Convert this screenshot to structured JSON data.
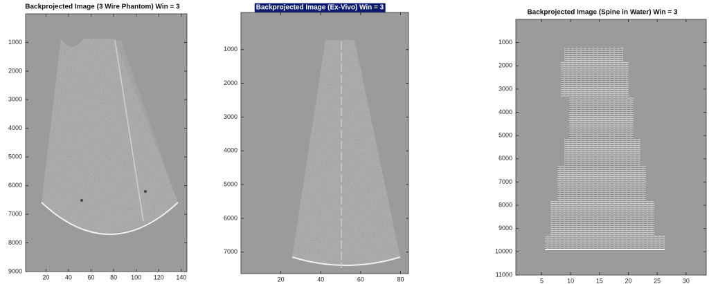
{
  "chart_data": [
    {
      "type": "image",
      "title": "Backprojected Image (3 Wire Phantom) Win = 3",
      "xlim": [
        2,
        145
      ],
      "xticks": [
        20,
        40,
        60,
        80,
        100,
        120,
        140
      ],
      "ylim": [
        0,
        9000
      ],
      "yticks": [
        1000,
        2000,
        3000,
        4000,
        5000,
        6000,
        7000,
        8000,
        9000
      ],
      "y_reversed": true
    },
    {
      "type": "image",
      "title": "Backprojected Image (Ex-Vivo) Win = 3",
      "highlighted": true,
      "xlim": [
        0,
        84
      ],
      "xticks": [
        20,
        40,
        60,
        80
      ],
      "ylim": [
        -100,
        7640
      ],
      "yticks": [
        1000,
        2000,
        3000,
        4000,
        5000,
        6000,
        7000
      ],
      "y_reversed": true
    },
    {
      "type": "image",
      "title": "Backprojected Image (Spine in Water) Win = 3",
      "xlim": [
        0.5,
        33.5
      ],
      "xticks": [
        5,
        10,
        15,
        20,
        25,
        30
      ],
      "ylim": [
        0,
        11000
      ],
      "yticks": [
        1000,
        2000,
        3000,
        4000,
        5000,
        6000,
        7000,
        8000,
        9000,
        10000,
        11000
      ],
      "y_reversed": true
    }
  ]
}
